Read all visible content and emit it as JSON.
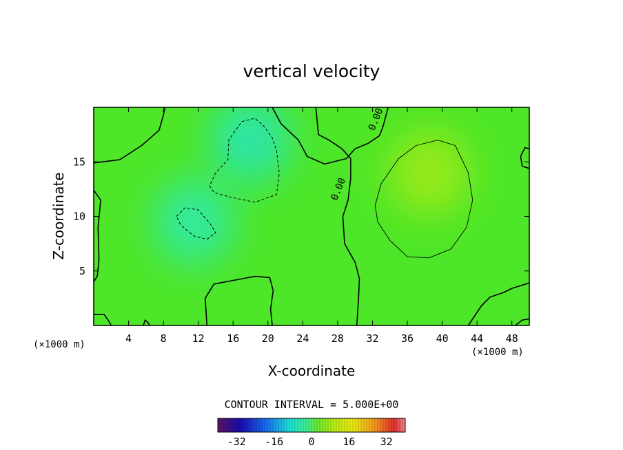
{
  "chart_data": {
    "type": "heatmap",
    "title": "vertical velocity",
    "xlabel": "X-coordinate",
    "ylabel": "Z-coordinate",
    "x_unit": "(×1000 m)",
    "z_unit": "(×1000 m)",
    "xlim": [
      0,
      50
    ],
    "zlim": [
      0,
      20
    ],
    "x_ticks": [
      4,
      8,
      12,
      16,
      20,
      24,
      28,
      32,
      36,
      40,
      44,
      48
    ],
    "z_ticks": [
      5,
      10,
      15
    ],
    "contour_interval_text": "CONTOUR INTERVAL = 5.000E+00",
    "contour_label": "0.00",
    "contours": [
      {
        "level": 0,
        "style": "solid",
        "points": [
          [
            0,
            14.9
          ],
          [
            3,
            15.2
          ],
          [
            5.5,
            16.5
          ],
          [
            7.5,
            17.9
          ],
          [
            8,
            19.3
          ],
          [
            8.2,
            20
          ]
        ]
      },
      {
        "level": 0,
        "style": "solid",
        "points": [
          [
            20.5,
            20
          ],
          [
            21.5,
            18.5
          ],
          [
            23.5,
            17
          ],
          [
            24.5,
            15.5
          ],
          [
            26.5,
            14.8
          ],
          [
            29,
            15.3
          ],
          [
            30,
            16.2
          ],
          [
            31.5,
            16.7
          ],
          [
            32.8,
            17.4
          ],
          [
            33.2,
            18.2
          ],
          [
            33.8,
            20
          ]
        ]
      },
      {
        "level": 0,
        "style": "solid",
        "points": [
          [
            25.5,
            20
          ],
          [
            25.8,
            17.5
          ],
          [
            27,
            17
          ],
          [
            28.5,
            16.2
          ],
          [
            29.5,
            15.3
          ],
          [
            29.5,
            13.5
          ],
          [
            29.2,
            11.5
          ],
          [
            28.6,
            10
          ],
          [
            28.8,
            7.5
          ],
          [
            30,
            5.8
          ],
          [
            30.5,
            4.3
          ],
          [
            30.4,
            2.5
          ],
          [
            30.2,
            0
          ]
        ]
      },
      {
        "level": 0,
        "style": "solid",
        "points": [
          [
            0,
            12.4
          ],
          [
            0.8,
            11.5
          ],
          [
            0.5,
            9
          ],
          [
            0.6,
            6
          ],
          [
            0.4,
            4.5
          ],
          [
            0,
            4
          ]
        ]
      },
      {
        "level": 0,
        "style": "solid",
        "points": [
          [
            13,
            0
          ],
          [
            12.8,
            2.5
          ],
          [
            13.8,
            3.8
          ],
          [
            16.5,
            4.2
          ],
          [
            18.5,
            4.5
          ],
          [
            20.2,
            4.4
          ],
          [
            20.6,
            3.2
          ],
          [
            20.3,
            1.5
          ],
          [
            20.5,
            0
          ]
        ]
      },
      {
        "level": 0,
        "style": "solid",
        "points": [
          [
            0,
            1
          ],
          [
            1.2,
            1
          ],
          [
            1.8,
            0.3
          ],
          [
            2,
            0
          ]
        ]
      },
      {
        "level": 0,
        "style": "solid",
        "points": [
          [
            5.7,
            0
          ],
          [
            5.9,
            0.5
          ],
          [
            6.3,
            0.2
          ],
          [
            6.4,
            0
          ]
        ]
      },
      {
        "level": 0,
        "style": "solid",
        "points": [
          [
            43,
            0
          ],
          [
            44.5,
            1.8
          ],
          [
            45.5,
            2.6
          ],
          [
            47,
            3
          ],
          [
            48,
            3.4
          ],
          [
            50,
            3.9
          ]
        ]
      },
      {
        "level": 0,
        "style": "solid",
        "points": [
          [
            48.4,
            0
          ],
          [
            49.2,
            0.5
          ],
          [
            50,
            0.6
          ]
        ]
      },
      {
        "level": 0,
        "style": "solid",
        "points": [
          [
            50,
            16.2
          ],
          [
            49.5,
            16.3
          ],
          [
            49,
            15.5
          ],
          [
            49.2,
            14.6
          ],
          [
            50,
            14.4
          ]
        ]
      },
      {
        "level": 5,
        "style": "thin",
        "points": [
          [
            37,
            16.5
          ],
          [
            39.5,
            17
          ],
          [
            41.5,
            16.5
          ],
          [
            43,
            14
          ],
          [
            43.5,
            11.5
          ],
          [
            42.8,
            9
          ],
          [
            41,
            7
          ],
          [
            38.5,
            6.2
          ],
          [
            36,
            6.3
          ],
          [
            34,
            7.8
          ],
          [
            32.6,
            9.5
          ],
          [
            32.3,
            11
          ],
          [
            33,
            13
          ],
          [
            35,
            15.3
          ],
          [
            37,
            16.5
          ]
        ]
      },
      {
        "level": -5,
        "style": "dashed",
        "points": [
          [
            15.5,
            11.8
          ],
          [
            18.5,
            11.3
          ],
          [
            21,
            12
          ],
          [
            21.3,
            14
          ],
          [
            21,
            16
          ],
          [
            20.5,
            17.2
          ],
          [
            19.5,
            18.3
          ],
          [
            18.5,
            19
          ],
          [
            17,
            18.7
          ],
          [
            15.5,
            17
          ],
          [
            15.4,
            15.2
          ],
          [
            14,
            14
          ],
          [
            13.3,
            12.8
          ],
          [
            13.8,
            12.2
          ],
          [
            15.5,
            11.8
          ]
        ]
      },
      {
        "level": -5,
        "style": "dashed",
        "points": [
          [
            9.5,
            10
          ],
          [
            10.5,
            10.8
          ],
          [
            12,
            10.6
          ],
          [
            13.3,
            9.4
          ],
          [
            14,
            8.5
          ],
          [
            13,
            7.9
          ],
          [
            11.5,
            8.2
          ],
          [
            10,
            9.2
          ],
          [
            9.5,
            10
          ]
        ]
      }
    ],
    "contour_label_positions": [
      [
        32.7,
        18.8
      ],
      [
        28.4,
        12.4
      ]
    ],
    "field_extrema": [
      {
        "x": 38.5,
        "z": 14,
        "value": 8
      },
      {
        "x": 18,
        "z": 17,
        "value": -7
      },
      {
        "x": 11.5,
        "z": 9.5,
        "value": -5.5
      }
    ],
    "colorbar": {
      "vmin": -40,
      "vmax": 40,
      "tick_labels": [
        "-32",
        "-16",
        "0",
        "16",
        "32"
      ],
      "tick_values": [
        -32,
        -16,
        0,
        16,
        32
      ]
    }
  }
}
